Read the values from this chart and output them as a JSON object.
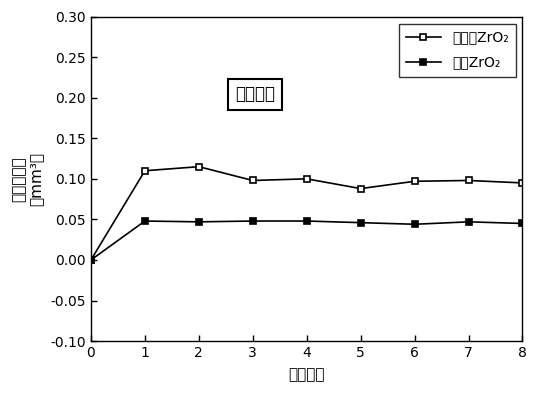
{
  "x": [
    0,
    1,
    2,
    3,
    4,
    5,
    6,
    7,
    8
  ],
  "y_uncoated": [
    0.0,
    0.11,
    0.115,
    0.098,
    0.1,
    0.088,
    0.097,
    0.098,
    0.095
  ],
  "y_coated": [
    0.0,
    0.048,
    0.047,
    0.048,
    0.048,
    0.046,
    0.044,
    0.047,
    0.045
  ],
  "xlabel": "实验次数",
  "ylabel_line1": "体积损失量",
  "ylabel_line2": "（mm³）",
  "annotation": "空气环境",
  "legend_uncoated": "未喷涂ZrO₂",
  "legend_coated": "喷涂ZrO₂",
  "xlim": [
    0,
    8
  ],
  "ylim": [
    -0.1,
    0.3
  ],
  "yticks": [
    -0.1,
    -0.05,
    0.0,
    0.05,
    0.1,
    0.15,
    0.2,
    0.25,
    0.3
  ],
  "xticks": [
    0,
    1,
    2,
    3,
    4,
    5,
    6,
    7,
    8
  ],
  "background_color": "#ffffff",
  "line_color": "#000000"
}
